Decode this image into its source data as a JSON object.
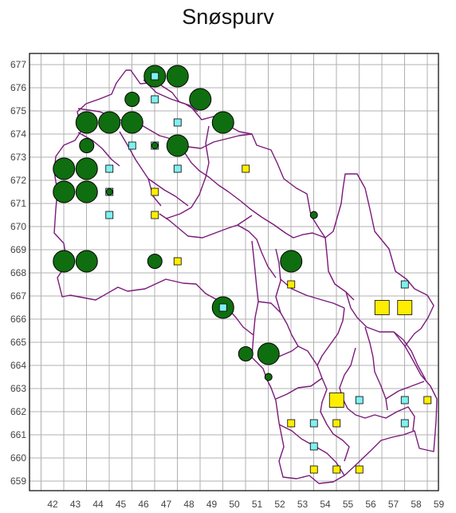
{
  "title": "Snøspurv",
  "x_ticks": [
    "42",
    "43",
    "44",
    "45",
    "46",
    "47",
    "48",
    "49",
    "50",
    "51",
    "52",
    "53",
    "54",
    "55",
    "56",
    "57",
    "58",
    "59"
  ],
  "y_ticks": [
    "659",
    "660",
    "661",
    "662",
    "663",
    "664",
    "665",
    "666",
    "667",
    "668",
    "669",
    "670",
    "671",
    "672",
    "673",
    "674",
    "675",
    "676",
    "677"
  ],
  "colors": {
    "grid": "#b0b0b0",
    "frame": "#000000",
    "boundary": "#7a1a7a",
    "green": "#0f6e0f",
    "cyan": "#80f0f0",
    "yellow": "#ffee00"
  },
  "legend_note": "",
  "markers": {
    "green_large": [
      [
        42.5,
        672.5
      ],
      [
        43.5,
        672.5
      ],
      [
        42.5,
        671.5
      ],
      [
        43.5,
        671.5
      ],
      [
        43.5,
        674.5
      ],
      [
        44.5,
        674.5
      ],
      [
        45.5,
        674.5
      ],
      [
        46.5,
        676.5
      ],
      [
        47.5,
        676.5
      ],
      [
        48.5,
        675.5
      ],
      [
        49.5,
        674.5
      ],
      [
        47.5,
        673.5
      ],
      [
        42.5,
        668.5
      ],
      [
        43.5,
        668.5
      ],
      [
        52.5,
        668.5
      ],
      [
        49.5,
        666.5
      ],
      [
        51.5,
        664.5
      ]
    ],
    "green_medium": [
      [
        45.5,
        675.5
      ],
      [
        43.5,
        673.5
      ],
      [
        46.5,
        668.5
      ],
      [
        50.5,
        664.5
      ]
    ],
    "green_small": [
      [
        53.5,
        670.5
      ],
      [
        51.5,
        663.5
      ]
    ],
    "green_tiny": [
      [
        44.5,
        671.5
      ],
      [
        46.5,
        673.5
      ]
    ],
    "cyan": [
      [
        46.5,
        676.5
      ],
      [
        46.5,
        675.5
      ],
      [
        47.5,
        674.5
      ],
      [
        45.5,
        673.5
      ],
      [
        46.5,
        673.5
      ],
      [
        47.5,
        672.5
      ],
      [
        44.5,
        672.5
      ],
      [
        44.5,
        671.5
      ],
      [
        44.5,
        670.5
      ],
      [
        49.5,
        666.5
      ],
      [
        57.5,
        667.5
      ],
      [
        55.5,
        662.5
      ],
      [
        57.5,
        662.5
      ],
      [
        53.5,
        661.5
      ],
      [
        57.5,
        661.5
      ],
      [
        53.5,
        660.5
      ]
    ],
    "yellow_small": [
      [
        50.5,
        672.5
      ],
      [
        46.5,
        671.5
      ],
      [
        46.5,
        670.5
      ],
      [
        47.5,
        668.5
      ],
      [
        52.5,
        667.5
      ],
      [
        58.5,
        662.5
      ],
      [
        52.5,
        661.5
      ],
      [
        54.5,
        661.5
      ],
      [
        53.5,
        659.5
      ],
      [
        54.5,
        659.5
      ],
      [
        55.5,
        659.5
      ]
    ],
    "yellow_large": [
      [
        56.5,
        666.5
      ],
      [
        57.5,
        666.5
      ],
      [
        54.5,
        662.5
      ]
    ]
  }
}
